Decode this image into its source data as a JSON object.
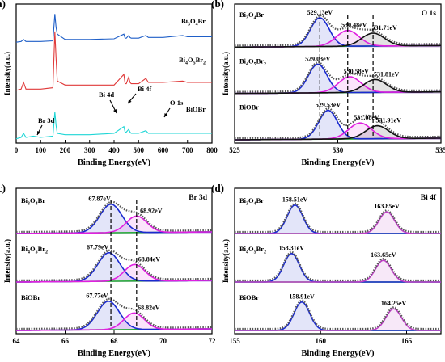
{
  "chart_data": [
    {
      "type": "line",
      "panel_label": "(a)",
      "xlabel": "Binding Energy(eV)",
      "ylabel": "Intensity(a.u.)",
      "xlim": [
        0,
        800
      ],
      "xticks": [
        0,
        100,
        200,
        300,
        400,
        500,
        600,
        700,
        800
      ],
      "series": [
        {
          "name": "Bi3O4Br",
          "color": "#1f5fc8",
          "x": [
            0,
            20,
            30,
            40,
            100,
            150,
            158,
            163,
            168,
            200,
            300,
            400,
            440,
            445,
            450,
            460,
            465,
            470,
            500,
            530,
            540,
            600,
            680,
            700,
            800
          ],
          "y": [
            0.74,
            0.745,
            0.76,
            0.745,
            0.745,
            0.75,
            0.95,
            0.85,
            0.8,
            0.76,
            0.76,
            0.765,
            0.8,
            0.77,
            0.77,
            0.79,
            0.775,
            0.77,
            0.77,
            0.79,
            0.775,
            0.775,
            0.79,
            0.78,
            0.78
          ]
        },
        {
          "name": "Bi4O5Br2",
          "color": "#e03a3a",
          "x": [
            0,
            20,
            30,
            40,
            100,
            150,
            158,
            163,
            168,
            200,
            300,
            400,
            440,
            445,
            450,
            460,
            465,
            470,
            500,
            530,
            540,
            600,
            680,
            700,
            800
          ],
          "y": [
            0.38,
            0.39,
            0.44,
            0.39,
            0.39,
            0.4,
            0.82,
            0.62,
            0.45,
            0.42,
            0.42,
            0.42,
            0.5,
            0.43,
            0.43,
            0.48,
            0.44,
            0.43,
            0.43,
            0.47,
            0.44,
            0.44,
            0.45,
            0.44,
            0.44
          ]
        },
        {
          "name": "BiOBr",
          "color": "#1fd6d6",
          "x": [
            0,
            20,
            30,
            40,
            70,
            100,
            150,
            158,
            163,
            168,
            200,
            300,
            400,
            440,
            445,
            450,
            460,
            465,
            470,
            500,
            530,
            540,
            600,
            700,
            800
          ],
          "y": [
            0.02,
            0.03,
            0.06,
            0.03,
            0.04,
            0.03,
            0.04,
            0.22,
            0.12,
            0.06,
            0.05,
            0.05,
            0.06,
            0.11,
            0.07,
            0.07,
            0.09,
            0.07,
            0.06,
            0.06,
            0.08,
            0.06,
            0.06,
            0.06,
            0.06
          ]
        }
      ],
      "labels": [
        "Bi3O4Br",
        "Bi4O5Br2",
        "BiOBr"
      ],
      "annotations": [
        "Br 3d",
        "Bi 4f",
        "Bi 4d",
        "O 1s"
      ]
    },
    {
      "type": "line",
      "panel_label": "(b)",
      "corner_label": "O 1s",
      "xlabel": "Binding Energy(eV)",
      "ylabel": "Intensity(a.u.)",
      "xlim": [
        525,
        535
      ],
      "xticks": [
        525,
        530,
        535
      ],
      "samples": [
        {
          "name": "Bi3O4Br",
          "peaks": [
            {
              "center": 529.13,
              "label": "529.13eV",
              "color": "#1a2ad0"
            },
            {
              "center": 530.48,
              "label": "530.48eV",
              "color": "#e020e0"
            },
            {
              "center": 531.71,
              "label": "531.71eV",
              "color": "#111111"
            }
          ]
        },
        {
          "name": "Bi4O5Br2",
          "peaks": [
            {
              "center": 529.03,
              "label": "529.03eV",
              "color": "#1a2ad0"
            },
            {
              "center": 530.58,
              "label": "530.58eV",
              "color": "#e020e0"
            },
            {
              "center": 531.81,
              "label": "531.81eV",
              "color": "#111111"
            }
          ]
        },
        {
          "name": "BiOBr",
          "peaks": [
            {
              "center": 529.53,
              "label": "529.53eV",
              "color": "#1a2ad0"
            },
            {
              "center": 531.08,
              "label": "531.08eV",
              "color": "#e020e0"
            },
            {
              "center": 531.91,
              "label": "531.91eV",
              "color": "#111111"
            }
          ]
        }
      ]
    },
    {
      "type": "line",
      "panel_label": "(c)",
      "corner_label": "Br 3d",
      "xlabel": "Binding Energy(eV)",
      "ylabel": "Intensity(a.u.)",
      "xlim": [
        64,
        72
      ],
      "xticks": [
        64,
        66,
        68,
        70,
        72
      ],
      "samples": [
        {
          "name": "Bi3O4Br",
          "peaks": [
            {
              "center": 67.87,
              "label": "67.87eV",
              "color": "#1a2ad0"
            },
            {
              "center": 68.92,
              "label": "68.92eV",
              "color": "#e020e0"
            }
          ]
        },
        {
          "name": "Bi4O5Br2",
          "peaks": [
            {
              "center": 67.79,
              "label": "67.79eV",
              "color": "#1a2ad0"
            },
            {
              "center": 68.84,
              "label": "68.84eV",
              "color": "#e020e0"
            }
          ]
        },
        {
          "name": "BiOBr",
          "peaks": [
            {
              "center": 67.77,
              "label": "67.77eV",
              "color": "#1a2ad0"
            },
            {
              "center": 68.82,
              "label": "68.82eV",
              "color": "#e020e0"
            }
          ]
        }
      ]
    },
    {
      "type": "line",
      "panel_label": "(d)",
      "corner_label": "Bi 4f",
      "xlabel": "Binding Energy(eV)",
      "ylabel": "Intensity(a.u.)",
      "xlim": [
        155,
        167
      ],
      "xticks": [
        155,
        160,
        165
      ],
      "samples": [
        {
          "name": "Bi3O4Br",
          "peaks": [
            {
              "center": 158.51,
              "label": "158.51eV",
              "color": "#1a2ad0"
            },
            {
              "center": 163.85,
              "label": "163.85eV",
              "color": "#c040c8"
            }
          ]
        },
        {
          "name": "Bi4O5Br2",
          "peaks": [
            {
              "center": 158.31,
              "label": "158.31eV",
              "color": "#1a2ad0"
            },
            {
              "center": 163.65,
              "label": "163.65eV",
              "color": "#c040c8"
            }
          ]
        },
        {
          "name": "BiOBr",
          "peaks": [
            {
              "center": 158.91,
              "label": "158.91eV",
              "color": "#1a2ad0"
            },
            {
              "center": 164.25,
              "label": "164.25eV",
              "color": "#c040c8"
            }
          ]
        }
      ]
    }
  ]
}
